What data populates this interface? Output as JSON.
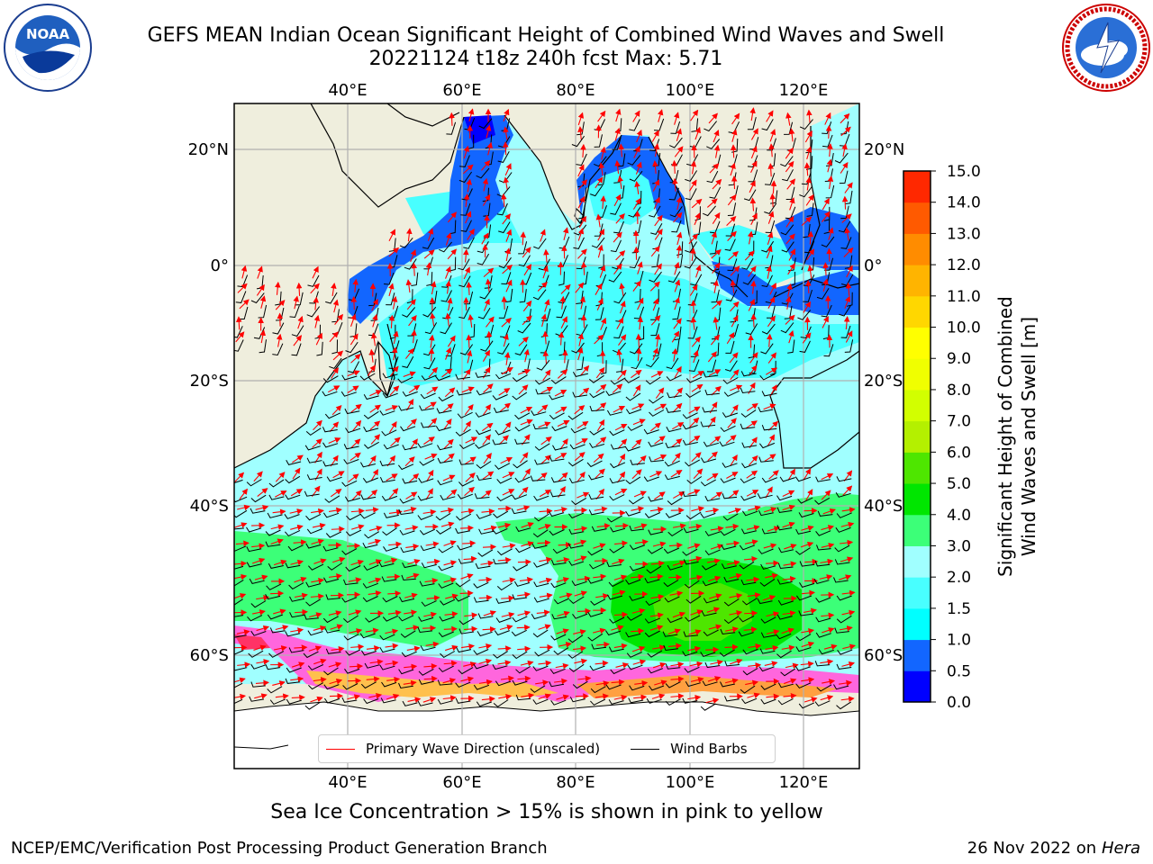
{
  "title": {
    "line1": "GEFS MEAN Indian Ocean Significant Height of Combined Wind Waves and Swell",
    "line2": "20221124 t18z 240h fcst   Max: 5.71"
  },
  "logos": {
    "left": {
      "text": "NOAA",
      "ring_text": "NATIONAL OCEANIC AND ATMOSPHERIC ADMINISTRATION · U.S. DEPARTMENT OF COMMERCE"
    },
    "right": {
      "ring_text": "NATIONAL WEATHER SERVICE"
    }
  },
  "map": {
    "top_labels": [
      "40°E",
      "60°E",
      "80°E",
      "100°E",
      "120°E"
    ],
    "bottom_labels": [
      "40°E",
      "60°E",
      "80°E",
      "100°E",
      "120°E"
    ],
    "left_labels": [
      "20°N",
      "0°",
      "20°S",
      "40°S",
      "60°S"
    ],
    "right_labels": [
      "20°N",
      "0°",
      "20°S",
      "40°S",
      "60°S"
    ]
  },
  "legend": {
    "wave_label": "Primary Wave Direction (unscaled)",
    "wave_color": "#ff0000",
    "barb_label": "Wind Barbs",
    "barb_color": "#000000"
  },
  "colorbar": {
    "label_line1": "Significant Height of Combined",
    "label_line2": "Wind Waves and Swell [m]",
    "ticks": [
      "0.0",
      "0.5",
      "1.0",
      "1.5",
      "2.0",
      "3.0",
      "4.0",
      "5.0",
      "6.0",
      "7.0",
      "8.0",
      "9.0",
      "10.0",
      "11.0",
      "12.0",
      "13.0",
      "14.0",
      "15.0"
    ],
    "colors": [
      "#0000ff",
      "#1266ff",
      "#00ffff",
      "#48ffff",
      "#a0ffff",
      "#3cff78",
      "#00e600",
      "#4ee600",
      "#b4f000",
      "#d2ff00",
      "#f0ff00",
      "#ffff00",
      "#ffd700",
      "#ffb400",
      "#ff8c00",
      "#ff5a00",
      "#ff2800"
    ]
  },
  "caption": "Sea Ice Concentration > 15% is shown in pink to yellow",
  "footer": {
    "left": "NCEP/EMC/Verification Post Processing Product Generation Branch",
    "right_date": "26 Nov 2022 on",
    "right_host": "Hera"
  }
}
